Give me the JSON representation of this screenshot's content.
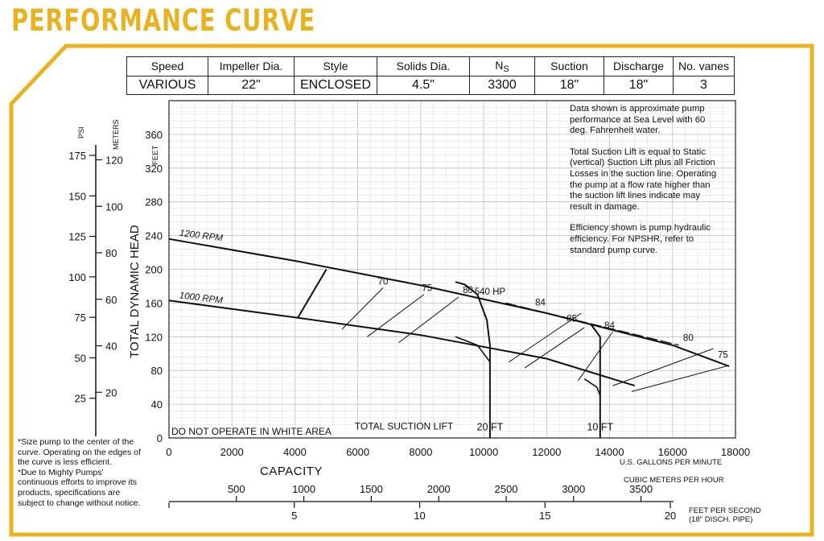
{
  "page_title": "PERFORMANCE CURVE",
  "specs": {
    "headers": [
      "Speed",
      "Impeller Dia.",
      "Style",
      "Solids Dia.",
      "N",
      "Suction",
      "Discharge",
      "No. vanes"
    ],
    "ns_subscript": "S",
    "values": [
      "VARIOUS",
      "22\"",
      "ENCLOSED",
      "4.5\"",
      "3300",
      "18\"",
      "18\"",
      "3"
    ]
  },
  "notes": [
    "Data shown is approximate pump performance at Sea Level with 60 deg. Fahrenheit water.",
    "Total Suction Lift is equal to Static (vertical) Suction Lift plus all Friction Losses in the suction line. Operating the pump at a flow rate higher than the suction lift lines indicate may result in damage.",
    "Efficiency shown is pump hydraulic efficiency.  For NPSHR, refer to standard pump curve."
  ],
  "footnotes": [
    "*Size pump to the center of the curve. Operating on the edges of the curve is less efficient.",
    "*Due to Mighty Pumps' continuous efforts to improve its products, specifications are subject to change without notice."
  ],
  "colors": {
    "frame": "#e8b222",
    "title": "#e8b222",
    "grid": "#cccccc",
    "line": "#111111"
  },
  "chart_data": {
    "type": "line",
    "xlabel": "CAPACITY",
    "x_unit_label": "U.S. GALLONS PER MINUTE",
    "ylabel": "TOTAL DYNAMIC HEAD",
    "y_unit_label": "FEET",
    "xlim": [
      0,
      18000
    ],
    "ylim": [
      0,
      400
    ],
    "x_ticks": [
      0,
      2000,
      4000,
      6000,
      8000,
      10000,
      12000,
      14000,
      16000,
      18000
    ],
    "y_ticks": [
      0,
      40,
      80,
      120,
      160,
      200,
      240,
      280,
      320,
      360
    ],
    "grid": true,
    "series": [
      {
        "name": "1200 RPM",
        "points": [
          [
            0,
            236
          ],
          [
            4000,
            210
          ],
          [
            8000,
            181
          ],
          [
            12000,
            148
          ],
          [
            16000,
            110
          ],
          [
            17800,
            85
          ]
        ]
      },
      {
        "name": "1000 RPM",
        "points": [
          [
            0,
            163
          ],
          [
            4000,
            143
          ],
          [
            8000,
            122
          ],
          [
            12000,
            94
          ],
          [
            14800,
            62
          ]
        ]
      }
    ],
    "efficiency_lines": [
      {
        "label": "70",
        "points": [
          [
            5500,
            129
          ],
          [
            6800,
            178
          ]
        ]
      },
      {
        "label": "75",
        "points": [
          [
            6300,
            120
          ],
          [
            8100,
            170
          ]
        ]
      },
      {
        "label": "80",
        "points": [
          [
            7300,
            113
          ],
          [
            9200,
            167
          ]
        ]
      },
      {
        "label": "84",
        "points": [
          [
            10800,
            90
          ],
          [
            13100,
            148
          ]
        ]
      },
      {
        "label": "85",
        "points": [
          [
            11300,
            83
          ],
          [
            13200,
            131
          ]
        ]
      },
      {
        "label": "84",
        "points": [
          [
            13000,
            68
          ],
          [
            14100,
            126
          ]
        ]
      },
      {
        "label": "80",
        "points": [
          [
            14100,
            62
          ],
          [
            17300,
            106
          ]
        ]
      },
      {
        "label": "75",
        "points": [
          [
            14700,
            55
          ],
          [
            17800,
            86
          ]
        ]
      }
    ],
    "efficiency_label_positions": [
      [
        6800,
        182
      ],
      [
        8200,
        174
      ],
      [
        9500,
        172
      ],
      [
        11800,
        157
      ],
      [
        12800,
        138
      ],
      [
        14000,
        130
      ],
      [
        16500,
        115
      ],
      [
        17600,
        95
      ]
    ],
    "operating_limit_line": {
      "points": [
        [
          4100,
          143
        ],
        [
          5000,
          200
        ]
      ]
    },
    "power_line": {
      "label": "540 HP",
      "points": [
        [
          10700,
          160
        ],
        [
          16200,
          110
        ]
      ]
    },
    "suction_lift": [
      {
        "label": "20 FT",
        "points": [
          [
            9100,
            185
          ],
          [
            9400,
            182
          ],
          [
            9800,
            170
          ],
          [
            10100,
            140
          ],
          [
            10200,
            110
          ],
          [
            10200,
            60
          ],
          [
            10200,
            0
          ]
        ]
      },
      {
        "label": "10 FT",
        "points": [
          [
            13400,
            135
          ],
          [
            13700,
            120
          ],
          [
            13700,
            80
          ],
          [
            13700,
            0
          ]
        ]
      }
    ],
    "npsh_curve_lower": {
      "points": [
        [
          9100,
          120
        ],
        [
          9800,
          110
        ],
        [
          10200,
          90
        ]
      ]
    },
    "npsh_curve_lower2": {
      "points": [
        [
          13200,
          70
        ],
        [
          13600,
          60
        ],
        [
          13700,
          50
        ]
      ]
    },
    "annotations": [
      "DO NOT OPERATE IN WHITE AREA",
      "TOTAL SUCTION LIFT"
    ],
    "psi_axis": {
      "label": "PSI",
      "ticks": [
        25,
        50,
        75,
        100,
        125,
        150,
        175
      ]
    },
    "meters_axis": {
      "label": "METERS",
      "ticks": [
        20,
        40,
        60,
        80,
        100,
        120
      ]
    },
    "cmh_axis": {
      "label": "CUBIC METERS PER HOUR",
      "ticks": [
        500,
        1000,
        1500,
        2000,
        2500,
        3000,
        3500
      ]
    },
    "fps_axis": {
      "label": "FEET PER SECOND",
      "sublabel": "(18\" DISCH. PIPE)",
      "ticks": [
        5,
        10,
        15,
        20
      ]
    }
  }
}
